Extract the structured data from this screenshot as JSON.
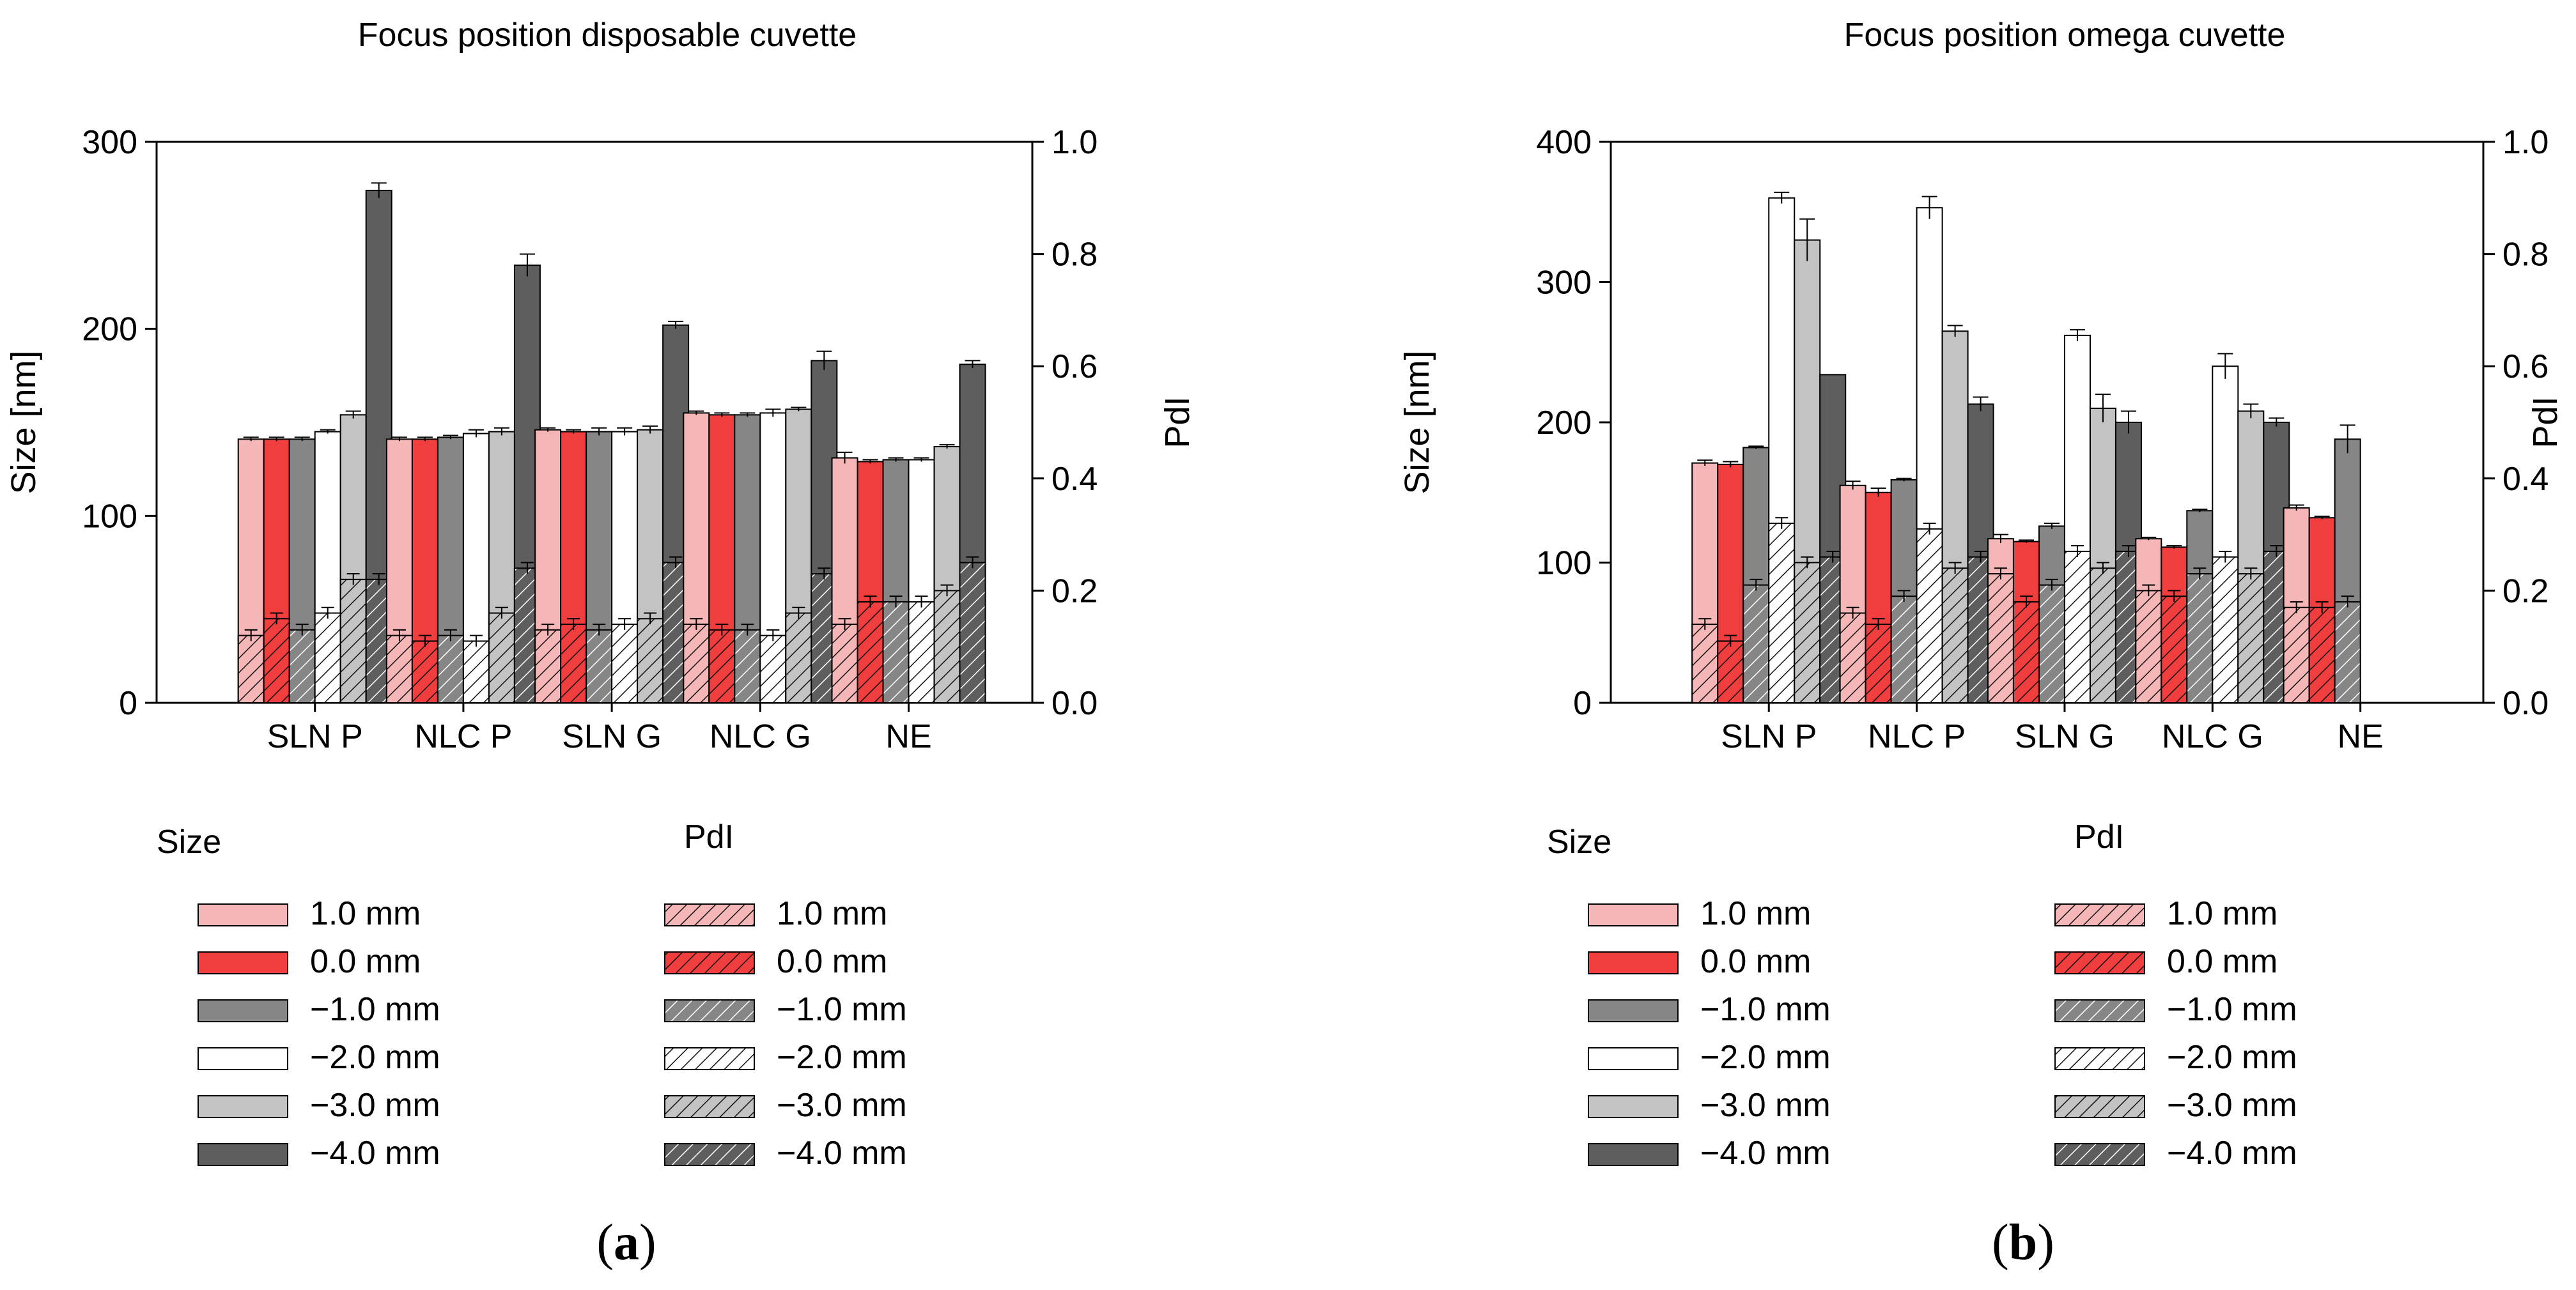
{
  "panel_labels": [
    {
      "open": "(",
      "letter": "a",
      "close": ")"
    },
    {
      "open": "(",
      "letter": "b",
      "close": ")"
    }
  ],
  "colors": {
    "s1.0": "#f4b6b6",
    "s0.0": "#f03e3e",
    "s-1.0": "#868686",
    "s-2.0": "#ffffff",
    "s-3.0": "#c3c3c3",
    "s-4.0": "#5e5e5e"
  },
  "chart_data": [
    {
      "type": "bar",
      "title": "Focus position disposable cuvette",
      "categories": [
        "SLN P",
        "NLC P",
        "SLN G",
        "NLC G",
        "NE"
      ],
      "ylabel": "Size [nm]",
      "ylabel2": "PdI",
      "ylim": [
        0,
        300
      ],
      "yticks": [
        0,
        100,
        200,
        300
      ],
      "ylim2": [
        0,
        1
      ],
      "yticks2": [
        "0.0",
        "0.2",
        "0.4",
        "0.6",
        "0.8",
        "1.0"
      ],
      "size_legend_title": "Size",
      "pdi_legend_title": "PdI",
      "series": [
        {
          "name": "1.0 mm",
          "size": [
            141,
            141,
            146,
            155,
            131
          ],
          "size_err": [
            1,
            1,
            1,
            1,
            3
          ],
          "pdi": [
            0.12,
            0.12,
            0.13,
            0.14,
            0.14
          ],
          "pdi_err": [
            0.01,
            0.01,
            0.01,
            0.01,
            0.01
          ]
        },
        {
          "name": "0.0 mm",
          "size": [
            141,
            141,
            145,
            154,
            129
          ],
          "size_err": [
            1,
            1,
            1,
            1,
            1
          ],
          "pdi": [
            0.15,
            0.11,
            0.14,
            0.13,
            0.18
          ],
          "pdi_err": [
            0.01,
            0.01,
            0.01,
            0.01,
            0.01
          ]
        },
        {
          "name": "−1.0 mm",
          "size": [
            141,
            142,
            145,
            154,
            130
          ],
          "size_err": [
            1,
            1,
            2,
            1,
            1
          ],
          "pdi": [
            0.13,
            0.12,
            0.13,
            0.13,
            0.18
          ],
          "pdi_err": [
            0.01,
            0.01,
            0.01,
            0.01,
            0.01
          ]
        },
        {
          "name": "−2.0 mm",
          "size": [
            145,
            144,
            145,
            155,
            130
          ],
          "size_err": [
            1,
            2,
            2,
            2,
            1
          ],
          "pdi": [
            0.16,
            0.11,
            0.14,
            0.12,
            0.18
          ],
          "pdi_err": [
            0.01,
            0.01,
            0.01,
            0.01,
            0.01
          ]
        },
        {
          "name": "−3.0 mm",
          "size": [
            154,
            145,
            146,
            157,
            137
          ],
          "size_err": [
            2,
            2,
            2,
            1,
            1
          ],
          "pdi": [
            0.22,
            0.16,
            0.15,
            0.16,
            0.2
          ],
          "pdi_err": [
            0.01,
            0.01,
            0.01,
            0.01,
            0.01
          ]
        },
        {
          "name": "−4.0 mm",
          "size": [
            274,
            234,
            202,
            183,
            181
          ],
          "size_err": [
            4,
            6,
            2,
            5,
            2
          ],
          "pdi": [
            0.22,
            0.24,
            0.25,
            0.23,
            0.25
          ],
          "pdi_err": [
            0.01,
            0.01,
            0.01,
            0.01,
            0.01
          ]
        }
      ]
    },
    {
      "type": "bar",
      "title": "Focus position omega cuvette",
      "categories": [
        "SLN P",
        "NLC P",
        "SLN G",
        "NLC G",
        "NE"
      ],
      "ylabel": "Size [nm]",
      "ylabel2": "PdI",
      "ylim": [
        0,
        400
      ],
      "yticks": [
        0,
        100,
        200,
        300,
        400
      ],
      "ylim2": [
        0,
        1
      ],
      "yticks2": [
        "0.0",
        "0.2",
        "0.4",
        "0.6",
        "0.8",
        "1.0"
      ],
      "size_legend_title": "Size",
      "pdi_legend_title": "PdI",
      "series": [
        {
          "name": "1.0 mm",
          "size": [
            171,
            155,
            117,
            117,
            139
          ],
          "size_err": [
            2,
            3,
            3,
            1,
            2
          ],
          "pdi": [
            0.14,
            0.16,
            0.23,
            0.2,
            0.17
          ],
          "pdi_err": [
            0.01,
            0.01,
            0.01,
            0.01,
            0.01
          ]
        },
        {
          "name": "0.0 mm",
          "size": [
            170,
            150,
            115,
            111,
            132
          ],
          "size_err": [
            2,
            3,
            1,
            1,
            1
          ],
          "pdi": [
            0.11,
            0.14,
            0.18,
            0.19,
            0.17
          ],
          "pdi_err": [
            0.01,
            0.01,
            0.01,
            0.01,
            0.01
          ]
        },
        {
          "name": "−1.0 mm",
          "size": [
            182,
            159,
            126,
            137,
            188
          ],
          "size_err": [
            1,
            1,
            2,
            1,
            10
          ],
          "pdi": [
            0.21,
            0.19,
            0.21,
            0.23,
            0.18
          ],
          "pdi_err": [
            0.01,
            0.01,
            0.01,
            0.01,
            0.01
          ]
        },
        {
          "name": "−2.0 mm",
          "size": [
            360,
            353,
            262,
            240,
            0
          ],
          "size_err": [
            4,
            8,
            4,
            9,
            0
          ],
          "pdi": [
            0.32,
            0.31,
            0.27,
            0.26,
            0
          ],
          "pdi_err": [
            0.01,
            0.01,
            0.01,
            0.01,
            0
          ]
        },
        {
          "name": "−3.0 mm",
          "size": [
            330,
            265,
            210,
            208,
            0
          ],
          "size_err": [
            15,
            4,
            10,
            5,
            0
          ],
          "pdi": [
            0.25,
            0.24,
            0.24,
            0.23,
            0
          ],
          "pdi_err": [
            0.01,
            0.01,
            0.01,
            0.01,
            0
          ]
        },
        {
          "name": "−4.0 mm",
          "size": [
            234,
            213,
            200,
            200,
            0
          ],
          "size_err": [
            0,
            5,
            8,
            3,
            0
          ],
          "pdi": [
            0.26,
            0.26,
            0.27,
            0.27,
            0
          ],
          "pdi_err": [
            0.01,
            0.01,
            0.01,
            0.01,
            0
          ]
        }
      ]
    }
  ]
}
